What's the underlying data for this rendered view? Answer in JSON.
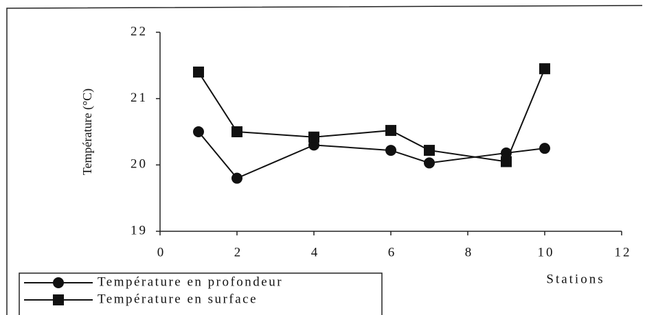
{
  "chart_data": {
    "type": "line",
    "x": [
      1,
      2,
      4,
      6,
      7,
      9,
      10
    ],
    "series": [
      {
        "name": "Température en profondeur",
        "color": "#111111",
        "marker": "circle",
        "values": [
          20.5,
          19.8,
          20.3,
          20.22,
          20.03,
          20.18,
          20.25
        ]
      },
      {
        "name": "Température en surface",
        "color": "#111111",
        "marker": "square",
        "values": [
          21.4,
          20.5,
          20.42,
          20.52,
          20.22,
          20.05,
          21.45
        ]
      }
    ],
    "xlabel": "Stations",
    "ylabel": "Température (°C)",
    "xlim": [
      0,
      12
    ],
    "xticks": [
      0,
      2,
      4,
      6,
      8,
      10,
      12
    ],
    "ylim": [
      19,
      22
    ],
    "yticks": [
      19,
      20,
      21,
      22
    ],
    "legend": "lower-left"
  }
}
